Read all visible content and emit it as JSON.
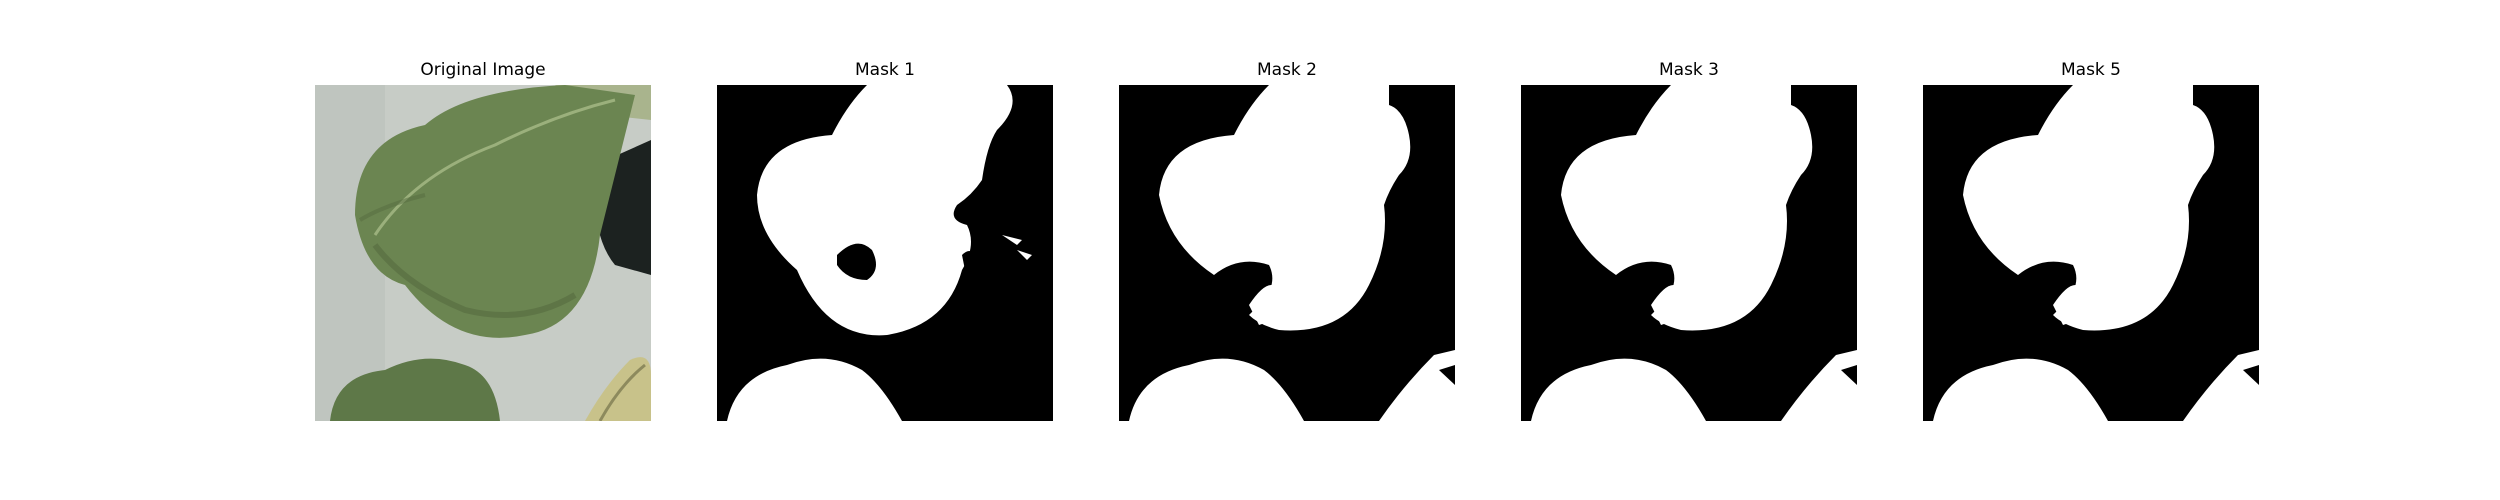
{
  "figure": {
    "panels": [
      {
        "title": "Original Image",
        "kind": "photo"
      },
      {
        "title": "Mask 1",
        "kind": "mask"
      },
      {
        "title": "Mask 2",
        "kind": "mask"
      },
      {
        "title": "Mask 3",
        "kind": "mask"
      },
      {
        "title": "Mask 5",
        "kind": "mask"
      }
    ],
    "colors": {
      "background": "#ffffff",
      "mask_background": "#000000",
      "mask_foreground": "#ffffff",
      "photo_background": "#c7ccc6",
      "leaf_dark": "#556b3f",
      "leaf_mid": "#6b8551",
      "leaf_light": "#8ea370",
      "dark_pot": "#1c2220",
      "dry_leaf": "#c8c28a"
    }
  }
}
